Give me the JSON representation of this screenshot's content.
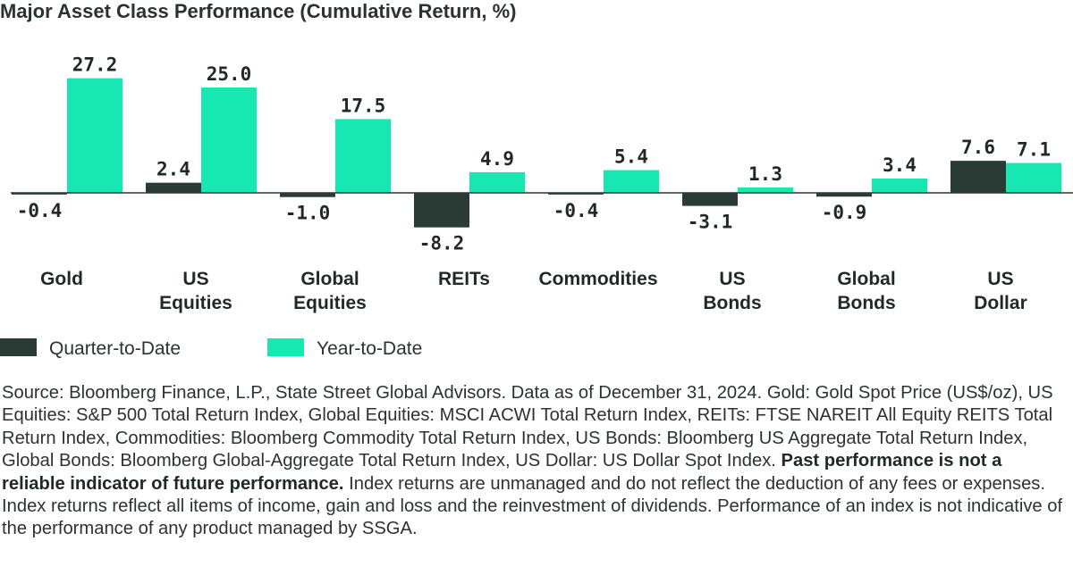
{
  "chart_data": {
    "type": "bar",
    "title": "Major Asset Class Performance (Cumulative Return, %)",
    "categories": [
      [
        "Gold"
      ],
      [
        "US",
        "Equities"
      ],
      [
        "Global",
        "Equities"
      ],
      [
        "REITs"
      ],
      [
        "Commodities"
      ],
      [
        "US",
        "Bonds"
      ],
      [
        "Global",
        "Bonds"
      ],
      [
        "US",
        "Dollar"
      ]
    ],
    "series": [
      {
        "name": "Quarter-to-Date",
        "color": "#2a3a35",
        "values": [
          -0.4,
          2.4,
          -1.0,
          -8.2,
          -0.4,
          -3.1,
          -0.9,
          7.6
        ],
        "labels": [
          "-0.4",
          "2.4",
          "-1.0",
          "-8.2",
          "-0.4",
          "-3.1",
          "-0.9",
          "7.6"
        ]
      },
      {
        "name": "Year-to-Date",
        "color": "#17e8b2",
        "values": [
          27.2,
          25.0,
          17.5,
          4.9,
          5.4,
          1.3,
          3.4,
          7.1
        ],
        "labels": [
          "27.2",
          "25.0",
          "17.5",
          "4.9",
          "5.4",
          "1.3",
          "3.4",
          "7.1"
        ]
      }
    ],
    "xlabel": "",
    "ylabel": "",
    "grid": false,
    "legend": "bottom-left",
    "axis_color": "#2a3a35"
  },
  "source": {
    "intro": "Source: Bloomberg Finance, L.P., State Street Global Advisors. Data as of December 31, 2024. Gold: Gold Spot Price (US$/oz), US Equities: S&P 500 Total Return Index, Global Equities: MSCI ACWI Total Return Index, REITs: FTSE NAREIT All Equity REITS Total Return Index, Commodities: Bloomberg Commodity Total Return Index, US Bonds: Bloomberg US Aggregate Total Return Index, Global Bonds: Bloomberg Global-Aggregate Total Return Index, US Dollar: US Dollar Spot Index.",
    "disclaimer_bold": "Past performance is not a reliable indicator of future performance.",
    "rest": "Index returns are unmanaged and do not reflect the deduction of any fees or expenses. Index returns reflect all items of income, gain and loss and the reinvestment of dividends. Performance of an index is not indicative of the performance of any product managed by SSGA."
  }
}
